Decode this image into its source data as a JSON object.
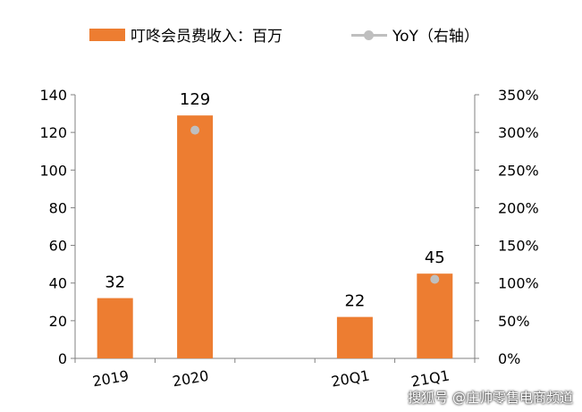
{
  "legend": {
    "bar_label": "叮咚会员费收入：百万",
    "line_label": "YoY（右轴）"
  },
  "watermark": "搜狐号 @庄帅零售电商频道",
  "chart_data": {
    "type": "bar",
    "categories": [
      "2019",
      "2020",
      "",
      "20Q1",
      "21Q1"
    ],
    "series": [
      {
        "name": "叮咚会员费收入：百万",
        "type": "bar",
        "axis": "left",
        "values": [
          32,
          129,
          null,
          22,
          45
        ],
        "data_labels": [
          "32",
          "129",
          "",
          "22",
          "45"
        ],
        "color": "#ED7D31"
      },
      {
        "name": "YoY（右轴）",
        "type": "line",
        "axis": "right",
        "values": [
          null,
          303,
          null,
          null,
          105
        ],
        "color": "#BFBFBF"
      }
    ],
    "left_axis": {
      "min": 0,
      "max": 140,
      "ticks": [
        0,
        20,
        40,
        60,
        80,
        100,
        120,
        140
      ],
      "tick_labels": [
        "0",
        "20",
        "40",
        "60",
        "80",
        "100",
        "120",
        "140"
      ]
    },
    "right_axis": {
      "min": 0,
      "max": 350,
      "ticks": [
        0,
        50,
        100,
        150,
        200,
        250,
        300,
        350
      ],
      "tick_labels": [
        "0%",
        "50%",
        "100%",
        "150%",
        "200%",
        "250%",
        "300%",
        "350%"
      ]
    },
    "grid": false,
    "legend_position": "top"
  }
}
